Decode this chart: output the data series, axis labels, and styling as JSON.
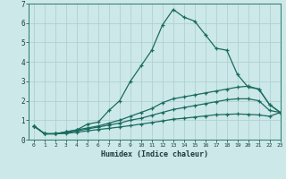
{
  "title": "",
  "xlabel": "Humidex (Indice chaleur)",
  "background_color": "#cce8e8",
  "line_color": "#1a6b5e",
  "grid_color": "#aacece",
  "xlim": [
    -0.5,
    23
  ],
  "ylim": [
    0,
    7
  ],
  "xticks": [
    0,
    1,
    2,
    3,
    4,
    5,
    6,
    7,
    8,
    9,
    10,
    11,
    12,
    13,
    14,
    15,
    16,
    17,
    18,
    19,
    20,
    21,
    22,
    23
  ],
  "yticks": [
    0,
    1,
    2,
    3,
    4,
    5,
    6,
    7
  ],
  "line1_x": [
    0,
    1,
    2,
    3,
    4,
    5,
    6,
    7,
    8,
    9,
    10,
    11,
    12,
    13,
    14,
    15,
    16,
    17,
    18,
    19,
    20,
    21,
    22,
    23
  ],
  "line1_y": [
    0.7,
    0.3,
    0.3,
    0.4,
    0.5,
    0.8,
    0.9,
    1.5,
    2.0,
    3.0,
    3.8,
    4.6,
    5.9,
    6.7,
    6.3,
    6.1,
    5.4,
    4.7,
    4.6,
    3.35,
    2.7,
    2.6,
    1.8,
    1.4
  ],
  "line2_x": [
    0,
    1,
    2,
    3,
    4,
    5,
    6,
    7,
    8,
    9,
    10,
    11,
    12,
    13,
    14,
    15,
    16,
    17,
    18,
    19,
    20,
    21,
    22,
    23
  ],
  "line2_y": [
    0.7,
    0.3,
    0.3,
    0.4,
    0.5,
    0.6,
    0.7,
    0.85,
    1.0,
    1.2,
    1.4,
    1.6,
    1.9,
    2.1,
    2.2,
    2.3,
    2.4,
    2.5,
    2.6,
    2.7,
    2.75,
    2.6,
    1.8,
    1.4
  ],
  "line3_x": [
    0,
    1,
    2,
    3,
    4,
    5,
    6,
    7,
    8,
    9,
    10,
    11,
    12,
    13,
    14,
    15,
    16,
    17,
    18,
    19,
    20,
    21,
    22,
    23
  ],
  "line3_y": [
    0.7,
    0.3,
    0.3,
    0.35,
    0.45,
    0.55,
    0.65,
    0.75,
    0.85,
    1.0,
    1.1,
    1.25,
    1.4,
    1.55,
    1.65,
    1.75,
    1.85,
    1.95,
    2.05,
    2.1,
    2.1,
    2.0,
    1.5,
    1.4
  ],
  "line4_x": [
    0,
    1,
    2,
    3,
    4,
    5,
    6,
    7,
    8,
    9,
    10,
    11,
    12,
    13,
    14,
    15,
    16,
    17,
    18,
    19,
    20,
    21,
    22,
    23
  ],
  "line4_y": [
    0.7,
    0.3,
    0.3,
    0.32,
    0.38,
    0.45,
    0.52,
    0.58,
    0.65,
    0.72,
    0.8,
    0.88,
    0.96,
    1.05,
    1.1,
    1.16,
    1.22,
    1.28,
    1.3,
    1.32,
    1.3,
    1.27,
    1.2,
    1.4
  ]
}
